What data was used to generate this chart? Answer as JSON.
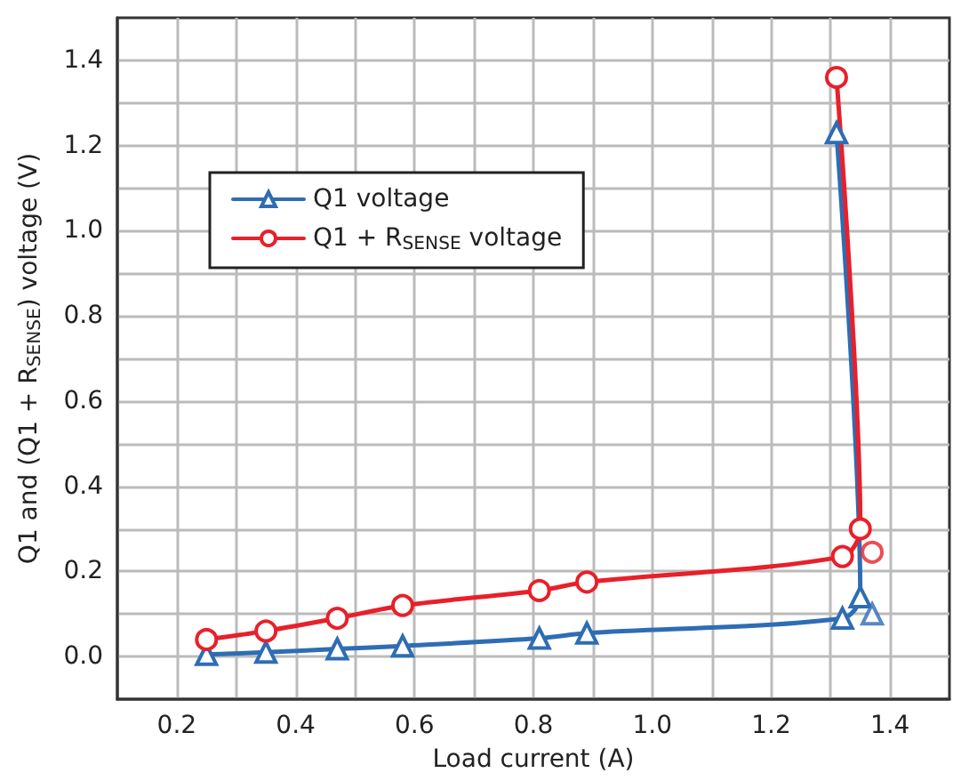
{
  "chart_data": {
    "type": "line",
    "xlabel": "Load current (A)",
    "ylabel": "Q1 and (Q1 + R$_{SENSE}$) voltage (V)",
    "xlim": [
      0.1,
      1.5
    ],
    "ylim": [
      -0.1,
      1.5
    ],
    "xticks": [
      0.2,
      {
        "value": 0.3,
        "label": null
      },
      0.4,
      {
        "value": 0.5,
        "label": null
      },
      0.6,
      {
        "value": 0.7,
        "label": null
      },
      0.8,
      {
        "value": 0.9,
        "label": null
      },
      {
        "value": 1.0,
        "label": "1.0"
      },
      {
        "value": 1.1,
        "label": null
      },
      1.2,
      {
        "value": 1.3,
        "label": null
      },
      1.4
    ],
    "yticks": [
      {
        "value": 0,
        "label": "0.0"
      },
      {
        "value": 0.1,
        "label": null
      },
      0.2,
      {
        "value": 0.3,
        "label": null
      },
      0.4,
      {
        "value": 0.5,
        "label": null
      },
      0.6,
      {
        "value": 0.7,
        "label": null
      },
      0.8,
      {
        "value": 0.9,
        "label": null
      },
      {
        "value": 1.0,
        "label": "1.0"
      },
      {
        "value": 1.1,
        "label": null
      },
      1.2,
      {
        "value": 1.3,
        "label": null
      },
      1.4
    ],
    "grid": true,
    "legend": "top left",
    "line_style": "solid",
    "series": [
      {
        "name": "Q1 voltage",
        "color": "#2e6db4",
        "marker": "triangle",
        "x": [
          0.25,
          0.35,
          0.47,
          0.58,
          0.81,
          0.89,
          1.32,
          1.35,
          1.31
        ],
        "values": [
          0.005,
          0.01,
          0.018,
          0.025,
          0.043,
          0.055,
          0.09,
          0.14,
          1.23
        ]
      },
      {
        "name": "Q1 + R$_{SENSE}$ voltage",
        "color": "#e8202a",
        "marker": "circle",
        "x": [
          0.25,
          0.35,
          0.47,
          0.58,
          0.81,
          0.89,
          1.32,
          1.35,
          1.31
        ],
        "values": [
          0.04,
          0.06,
          0.09,
          0.12,
          0.155,
          0.175,
          0.235,
          0.3,
          1.36
        ]
      },
      {
        "type": "scatter",
        "color": "#2e6db4",
        "marker": "triangle",
        "x": [
          1.37
        ],
        "values": [
          0.1
        ]
      },
      {
        "type": "scatter",
        "color": "#e8202a",
        "marker": "circle",
        "x": [
          1.37
        ],
        "values": [
          0.245
        ]
      }
    ]
  }
}
